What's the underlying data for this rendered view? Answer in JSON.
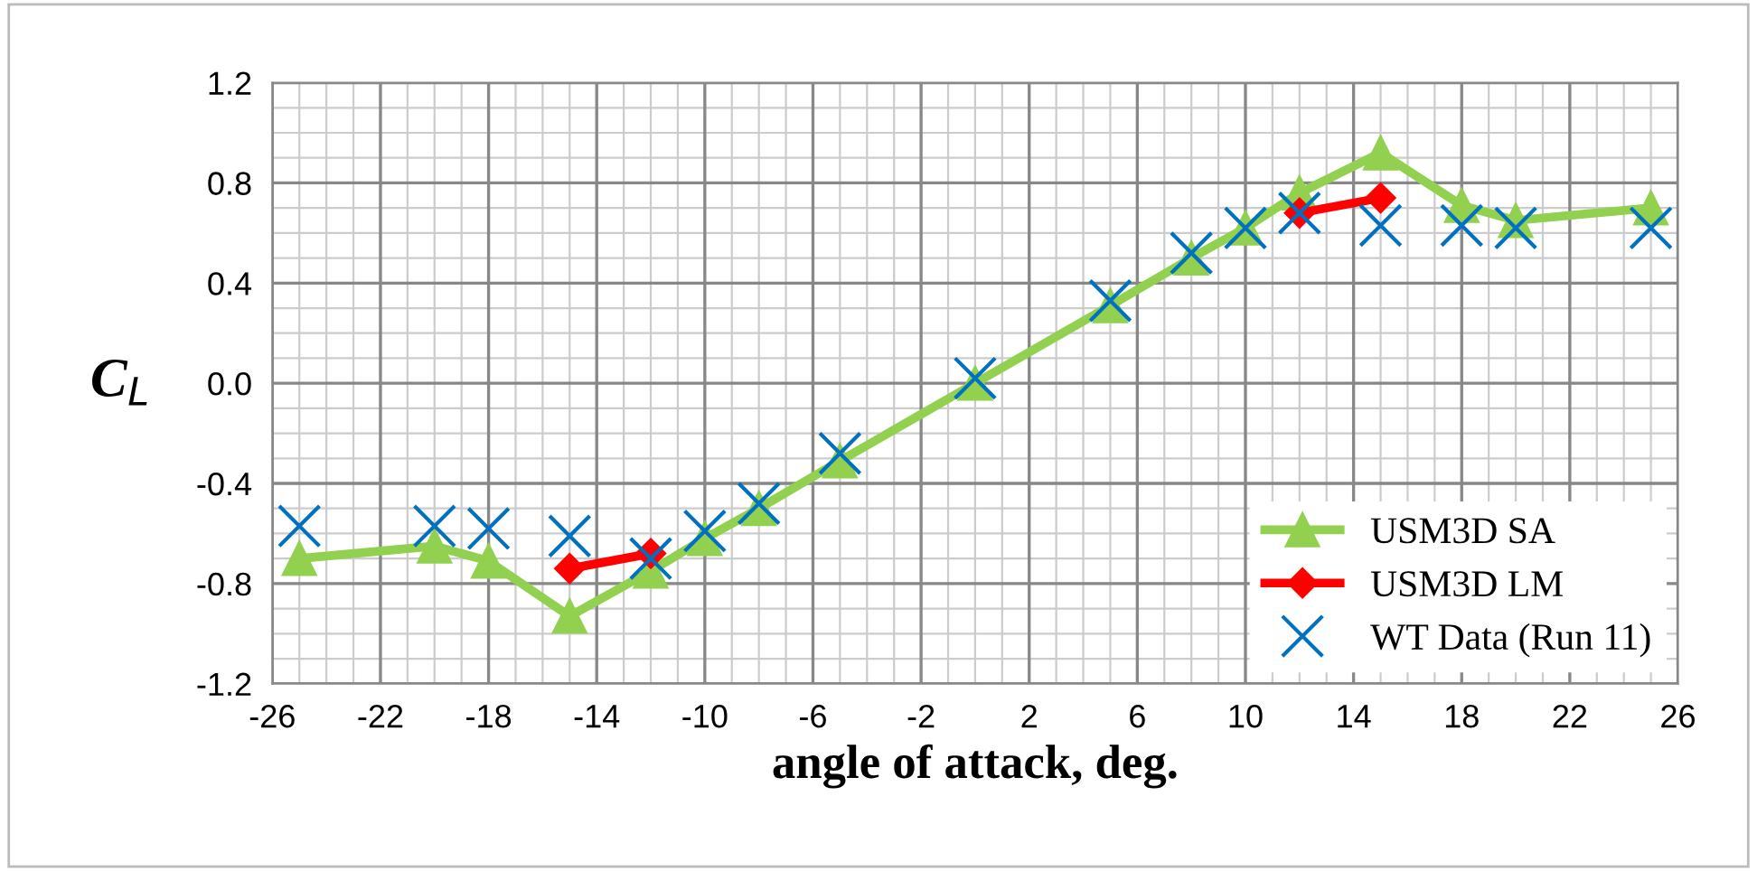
{
  "chart_data": {
    "type": "line",
    "xlabel": "angle of attack, deg.",
    "ylabel": "C$_{L}$",
    "xlim": [
      -26,
      26
    ],
    "xticks": [
      -26,
      -22,
      -18,
      -14,
      -10,
      -6,
      -2,
      2,
      6,
      10,
      14,
      18,
      22,
      26
    ],
    "ylim": [
      -1.2,
      1.2
    ],
    "yticks": [
      {
        "value": -1.2,
        "label": "-1.2"
      },
      {
        "value": -0.8,
        "label": "-0.8"
      },
      {
        "value": -0.4,
        "label": "-0.4"
      },
      {
        "value": 0,
        "label": "0.0"
      },
      {
        "value": 0.4,
        "label": "0.4"
      },
      {
        "value": 0.8,
        "label": "0.8"
      },
      {
        "value": 1.2,
        "label": "1.2"
      }
    ],
    "grid": true,
    "legend": "bottom right",
    "series": [
      {
        "name": "USM3D SA",
        "color": "#92d050",
        "marker": "triangle",
        "x": [
          -25,
          -20,
          -18,
          -15,
          -12,
          -10,
          -8,
          -5,
          0,
          5,
          8,
          10,
          12,
          15,
          18,
          20,
          25
        ],
        "values": [
          -0.7,
          -0.65,
          -0.71,
          -0.93,
          -0.75,
          -0.62,
          -0.5,
          -0.31,
          0.0,
          0.31,
          0.5,
          0.62,
          0.76,
          0.92,
          0.71,
          0.65,
          0.7
        ]
      },
      {
        "name": "USM3D LM",
        "color": "#ff0000",
        "marker": "diamond",
        "x": [
          -15,
          -12,
          0,
          12,
          15
        ],
        "values": [
          -0.74,
          -0.68,
          null,
          0.68,
          0.74
        ]
      },
      {
        "name": "WT Data (Run 11)",
        "color": "#0070c0",
        "type": "scatter",
        "marker": "cross",
        "x": [
          -25,
          -20,
          -18,
          -15,
          -12,
          -10,
          -8,
          -5,
          0,
          5,
          8,
          10,
          12,
          15,
          18,
          20,
          25
        ],
        "values": [
          -0.57,
          -0.57,
          -0.58,
          -0.61,
          -0.7,
          -0.59,
          -0.48,
          -0.28,
          0.02,
          0.33,
          0.52,
          0.62,
          0.68,
          0.63,
          0.63,
          0.62,
          0.62
        ]
      }
    ]
  }
}
